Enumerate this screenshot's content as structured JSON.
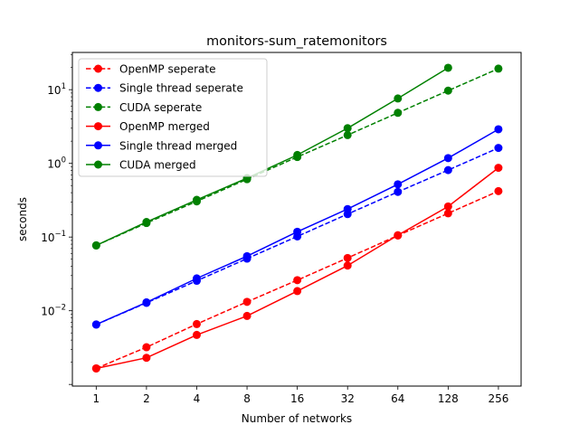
{
  "chart_data": {
    "type": "line",
    "title": "monitors-sum_ratemonitors",
    "xlabel": "Number of networks",
    "ylabel": "seconds",
    "x_scale": "log2",
    "y_scale": "log10",
    "x": [
      1,
      2,
      4,
      8,
      16,
      32,
      64,
      128,
      256
    ],
    "x_tick_labels": [
      "1",
      "2",
      "4",
      "8",
      "16",
      "32",
      "64",
      "128",
      "256"
    ],
    "y_ticks": [
      {
        "value": 0.01,
        "base": "10",
        "exp": "−2"
      },
      {
        "value": 0.1,
        "base": "10",
        "exp": "−1"
      },
      {
        "value": 1,
        "base": "10",
        "exp": "0"
      },
      {
        "value": 10,
        "base": "10",
        "exp": "1"
      }
    ],
    "xlim": [
      0.72,
      350
    ],
    "ylim": [
      0.00095,
      32
    ],
    "grid": false,
    "legend_position": "top-left",
    "series": [
      {
        "name": "OpenMP seperate",
        "color": "#ff0000",
        "linestyle": "dashed",
        "values": [
          0.00165,
          0.0032,
          0.0066,
          0.0132,
          0.026,
          0.052,
          0.105,
          0.21,
          0.42
        ]
      },
      {
        "name": "Single thread seperate",
        "color": "#0000ff",
        "linestyle": "dashed",
        "values": [
          0.0065,
          0.0128,
          0.0255,
          0.051,
          0.102,
          0.205,
          0.41,
          0.81,
          1.62
        ]
      },
      {
        "name": "CUDA seperate",
        "color": "#008000",
        "linestyle": "dashed",
        "values": [
          0.077,
          0.155,
          0.305,
          0.61,
          1.22,
          2.42,
          4.85,
          9.7,
          19.3
        ]
      },
      {
        "name": "OpenMP merged",
        "color": "#ff0000",
        "linestyle": "solid",
        "values": [
          0.00165,
          0.0023,
          0.0047,
          0.0085,
          0.0185,
          0.041,
          0.106,
          0.26,
          0.87
        ]
      },
      {
        "name": "Single thread merged",
        "color": "#0000ff",
        "linestyle": "solid",
        "values": [
          0.0065,
          0.013,
          0.0275,
          0.055,
          0.118,
          0.24,
          0.52,
          1.18,
          2.9
        ]
      },
      {
        "name": "CUDA merged",
        "color": "#008000",
        "linestyle": "solid",
        "values": [
          0.077,
          0.16,
          0.32,
          0.63,
          1.3,
          3.0,
          7.6,
          19.8,
          null
        ]
      }
    ]
  }
}
